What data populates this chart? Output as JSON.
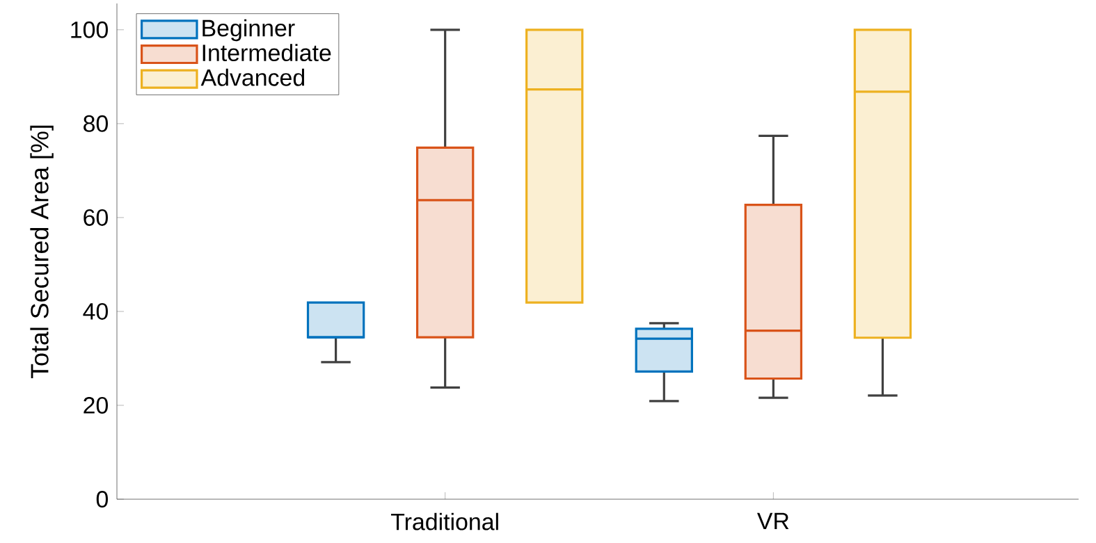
{
  "chart_data": {
    "type": "box",
    "ylabel": "Total Secured Area [%]",
    "categories": [
      "Traditional",
      "VR"
    ],
    "ylim": [
      0,
      105.6
    ],
    "yticks": [
      0,
      20,
      40,
      60,
      80,
      100
    ],
    "legend": "top left",
    "series": [
      {
        "name": "Beginner",
        "color": "#0072bd",
        "boxes": [
          {
            "low": 29.2,
            "q1": 34.5,
            "median": 34.5,
            "q3": 41.9,
            "high": 41.9
          },
          {
            "low": 20.9,
            "q1": 27.2,
            "median": 34.2,
            "q3": 36.3,
            "high": 37.5
          }
        ]
      },
      {
        "name": "Intermediate",
        "color": "#d95319",
        "boxes": [
          {
            "low": 23.8,
            "q1": 34.5,
            "median": 63.7,
            "q3": 74.9,
            "high": 100
          },
          {
            "low": 21.6,
            "q1": 25.7,
            "median": 35.9,
            "q3": 62.7,
            "high": 77.4
          }
        ]
      },
      {
        "name": "Advanced",
        "color": "#edb120",
        "boxes": [
          {
            "low": 41.9,
            "q1": 41.9,
            "median": 87.3,
            "q3": 100,
            "high": 100
          },
          {
            "low": 22.1,
            "q1": 34.4,
            "median": 86.8,
            "q3": 100,
            "high": 100
          }
        ]
      }
    ]
  }
}
